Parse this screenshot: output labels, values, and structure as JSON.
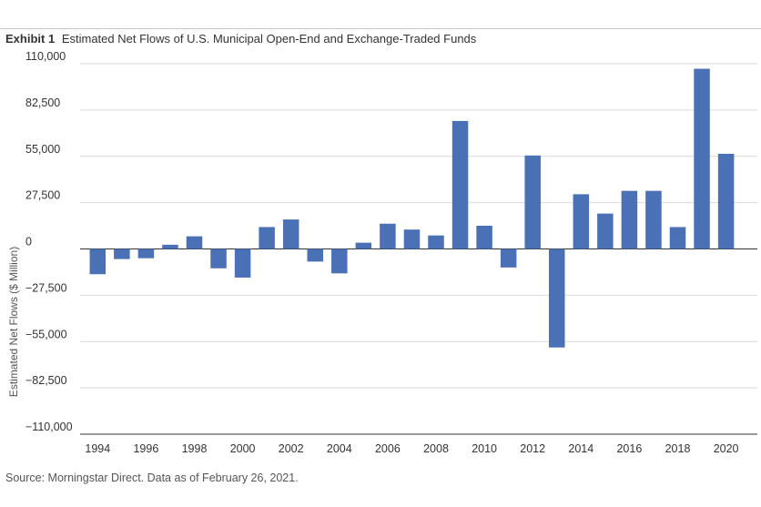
{
  "header": {
    "exhibit": "Exhibit 1",
    "title": "Estimated Net Flows of U.S. Municipal Open-End and Exchange-Traded Funds"
  },
  "source": "Source: Morningstar Direct. Data as of February 26, 2021.",
  "colors": {
    "bar": "#4a70b5",
    "grid": "#d9d9d9",
    "axis": "#333333"
  },
  "chart_data": {
    "type": "bar",
    "title": "Estimated Net Flows of U.S. Municipal Open-End and Exchange-Traded Funds",
    "ylabel": "Estimated Net Flows ($ Million)",
    "xlabel": "",
    "ylim": [
      -110000,
      110000
    ],
    "yticks": [
      110000,
      82500,
      55000,
      27500,
      0,
      -27500,
      -55000,
      -82500,
      -110000
    ],
    "ytick_labels": [
      "110,000",
      "82,500",
      "55,000",
      "27,500",
      "0",
      "−27,500",
      "−55,000",
      "−82,500",
      "−110,000"
    ],
    "xtick_labels": [
      "1994",
      "1996",
      "1998",
      "2000",
      "2002",
      "2004",
      "2006",
      "2008",
      "2010",
      "2012",
      "2014",
      "2016",
      "2018",
      "2020"
    ],
    "grid": true,
    "categories": [
      1994,
      1995,
      1996,
      1997,
      1998,
      1999,
      2000,
      2001,
      2002,
      2003,
      2004,
      2005,
      2006,
      2007,
      2008,
      2009,
      2010,
      2011,
      2012,
      2013,
      2014,
      2015,
      2016,
      2017,
      2018,
      2019,
      2020
    ],
    "values": [
      -15000,
      -6000,
      -5500,
      2500,
      7500,
      -11500,
      -17000,
      13000,
      17500,
      -7500,
      -14500,
      3700,
      15000,
      11500,
      8000,
      76000,
      13800,
      -11000,
      55500,
      -58500,
      32500,
      21000,
      34500,
      34500,
      13000,
      107000,
      56500
    ]
  }
}
